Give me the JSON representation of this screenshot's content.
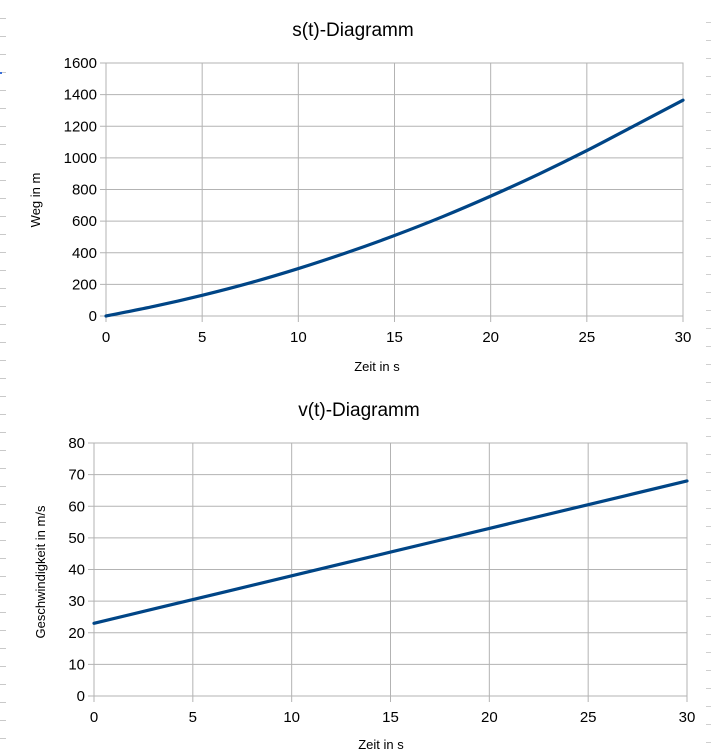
{
  "chart_data": [
    {
      "type": "line",
      "title": "s(t)-Diagramm",
      "xlabel": "Zeit in s",
      "ylabel": "Weg in m",
      "xlim": [
        0,
        30
      ],
      "ylim": [
        0,
        1600
      ],
      "xticks": [
        0,
        5,
        10,
        15,
        20,
        25,
        30
      ],
      "yticks": [
        0,
        200,
        400,
        600,
        800,
        1000,
        1200,
        1400,
        1600
      ],
      "grid": true,
      "color": "#004586",
      "series": [
        {
          "x": [
            0,
            2.5,
            5,
            7.5,
            10,
            12.5,
            15,
            17.5,
            20,
            22.5,
            25,
            27.5,
            30
          ],
          "y": [
            0,
            61,
            131,
            210,
            300,
            400,
            509,
            628,
            758,
            897,
            1046,
            1205,
            1365
          ]
        }
      ]
    },
    {
      "type": "line",
      "title": "v(t)-Diagramm",
      "xlabel": "Zeit in s",
      "ylabel": "Geschwindigkeit in m/s",
      "xlim": [
        0,
        30
      ],
      "ylim": [
        0,
        80
      ],
      "xticks": [
        0,
        5,
        10,
        15,
        20,
        25,
        30
      ],
      "yticks": [
        0,
        10,
        20,
        30,
        40,
        50,
        60,
        70,
        80
      ],
      "grid": true,
      "color": "#004586",
      "series": [
        {
          "x": [
            0,
            5,
            10,
            15,
            20,
            25,
            30
          ],
          "y": [
            23,
            30.5,
            38,
            45.5,
            53,
            60.5,
            68
          ]
        }
      ]
    }
  ]
}
